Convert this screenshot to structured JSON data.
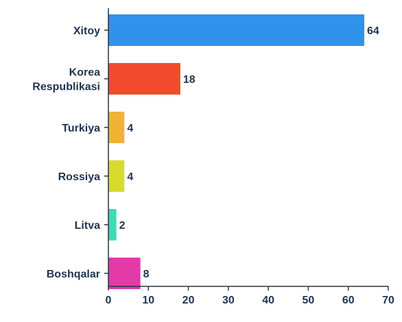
{
  "chart_data": {
    "type": "bar",
    "orientation": "horizontal",
    "title": "",
    "xlabel": "",
    "ylabel": "",
    "categories": [
      [
        "Xitoy"
      ],
      [
        "Korea",
        "Respublikasi"
      ],
      [
        "Turkiya"
      ],
      [
        "Rossiya"
      ],
      [
        "Litva"
      ],
      [
        "Boshqalar"
      ]
    ],
    "values": [
      64,
      18,
      4,
      4,
      2,
      8
    ],
    "value_labels": [
      "64",
      "18",
      "4",
      "4",
      "2",
      "8"
    ],
    "colors": [
      "#2f93ec",
      "#f24b2c",
      "#f2b233",
      "#d7db2b",
      "#3ddcb5",
      "#e23aa6"
    ],
    "xlim": [
      0,
      70
    ],
    "xticks": [
      0,
      10,
      20,
      30,
      40,
      50,
      60,
      70
    ],
    "grid": false,
    "legend": "none",
    "text_color": "#1f3550",
    "axis_color": "#2a3340"
  }
}
